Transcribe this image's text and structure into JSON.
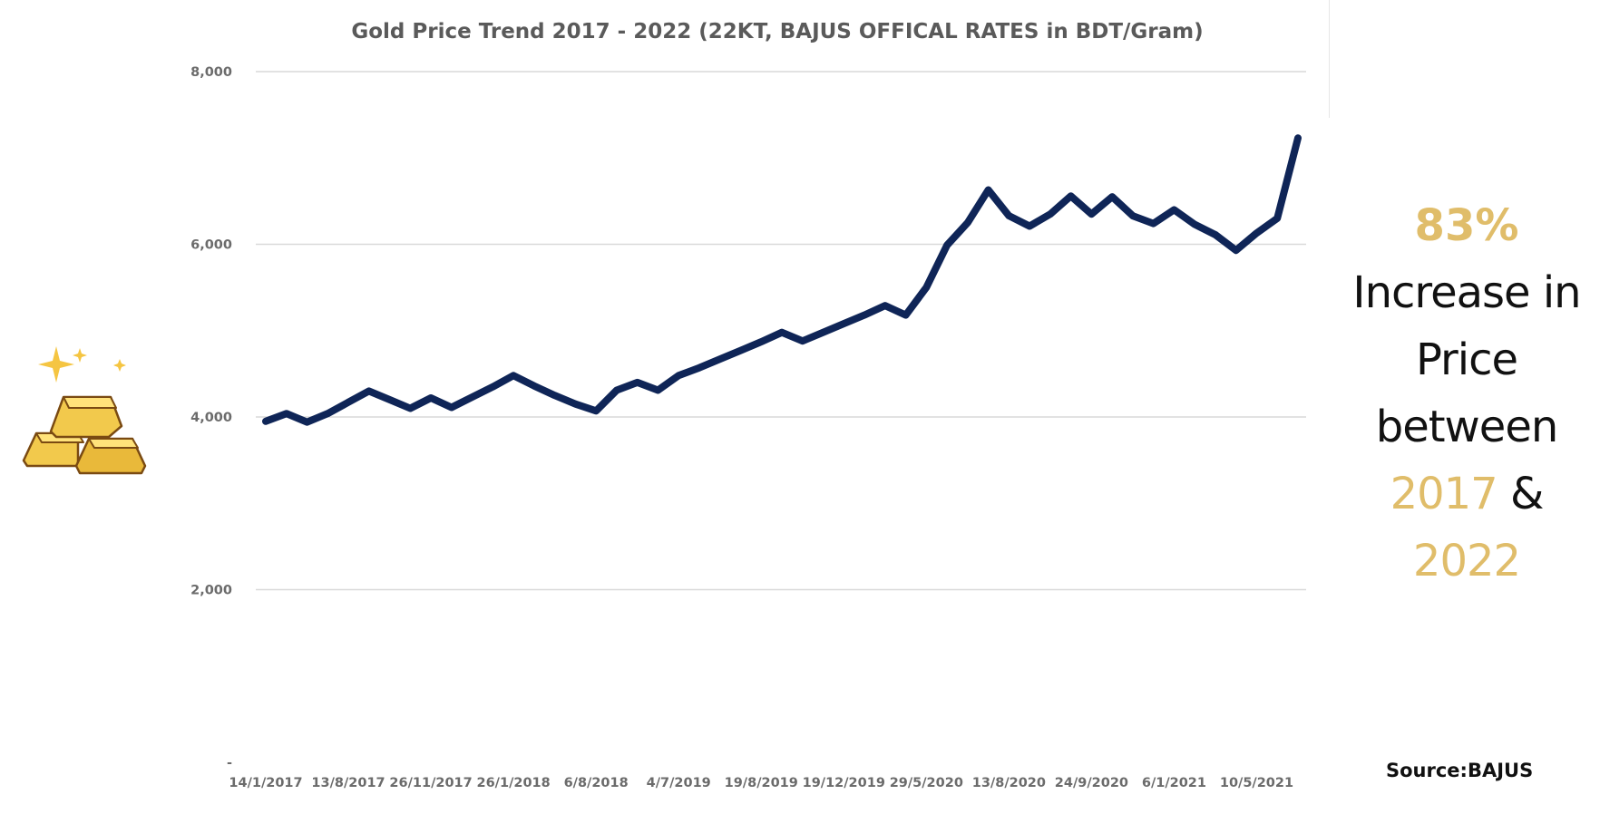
{
  "summary": {
    "percent": "83%",
    "line1": "Increase in",
    "line2": "Price",
    "line3": "between",
    "year_start": "2017",
    "ampersand": "&",
    "year_end": "2022"
  },
  "source": "Source:BAJUS",
  "colors": {
    "line": "#0f2557",
    "accent_gold": "#e0bd6a",
    "grid": "#d9d9d9"
  },
  "icon": "gold-bars-sparkles-icon",
  "chart_data": {
    "type": "line",
    "title": "Gold Price Trend 2017 - 2022 (22KT, BAJUS OFFICAL RATES in BDT/Gram)",
    "xlabel": "",
    "ylabel": "",
    "ylim": [
      0,
      8000
    ],
    "y_ticks": [
      0,
      2000,
      4000,
      6000,
      8000
    ],
    "y_tick_labels": [
      "-",
      "2,000",
      "4,000",
      "6,000",
      "8,000"
    ],
    "x_tick_labels": [
      "14/1/2017",
      "13/8/2017",
      "26/11/2017",
      "26/1/2018",
      "6/8/2018",
      "4/7/2019",
      "19/8/2019",
      "19/12/2019",
      "29/5/2020",
      "13/8/2020",
      "24/9/2020",
      "6/1/2021",
      "10/5/2021"
    ],
    "x_tick_positions": [
      0,
      4,
      8,
      12,
      16,
      20,
      24,
      28,
      32,
      36,
      40,
      44,
      48
    ],
    "grid": true,
    "legend": "none",
    "series": [
      {
        "values": [
          3950,
          4040,
          3940,
          4040,
          4170,
          4300,
          4200,
          4100,
          4220,
          4110,
          4230,
          4350,
          4480,
          4360,
          4250,
          4150,
          4070,
          4310,
          4400,
          4310,
          4480,
          4570,
          4670,
          4770,
          4870,
          4980,
          4880,
          4980,
          5080,
          5180,
          5290,
          5180,
          5500,
          5990,
          6250,
          6630,
          6330,
          6210,
          6350,
          6560,
          6350,
          6550,
          6330,
          6240,
          6400,
          6230,
          6110,
          5930,
          6130,
          6300,
          7230
        ]
      }
    ]
  }
}
